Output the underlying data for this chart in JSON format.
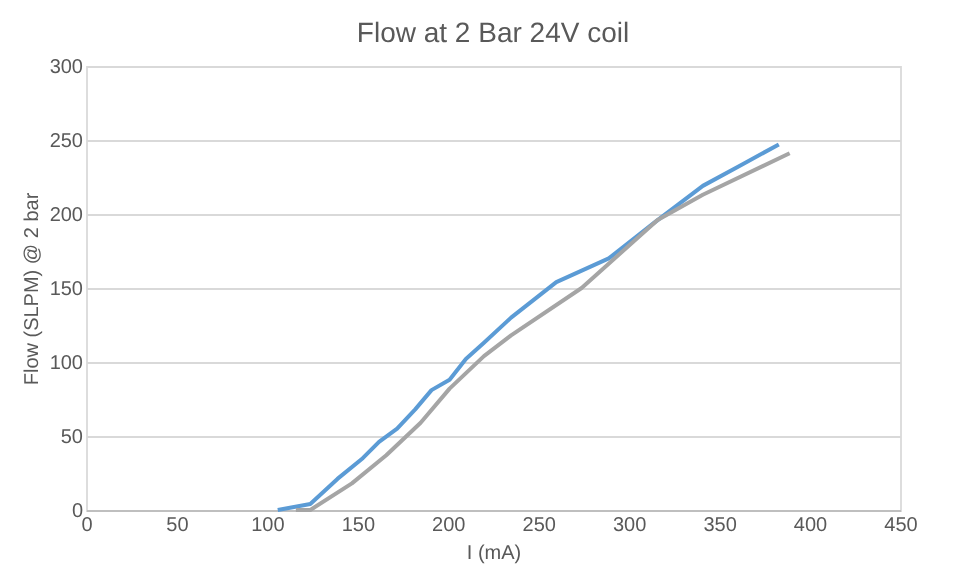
{
  "chart_data": {
    "type": "line",
    "title": "Flow at 2 Bar 24V coil",
    "xlabel": "I (mA)",
    "ylabel": "Flow (SLPM) @ 2 bar",
    "xlim": [
      0,
      450
    ],
    "xticks": [
      0,
      50,
      100,
      150,
      200,
      250,
      300,
      350,
      400,
      450
    ],
    "ylim": [
      0,
      300
    ],
    "yticks": [
      0,
      50,
      100,
      150,
      200,
      250,
      300
    ],
    "grid": "y",
    "line_style": "solid",
    "marker": "none",
    "series": [
      {
        "color": "#5b9bd5",
        "x": [
          106,
          124,
          139,
          153,
          162,
          172,
          182,
          191,
          201,
          210,
          220,
          235,
          260,
          289,
          314,
          341,
          362,
          383
        ],
        "values": [
          0,
          4,
          21,
          35,
          46,
          55,
          68,
          81,
          88,
          102,
          113,
          130,
          154,
          170,
          194,
          219,
          233,
          247
        ]
      },
      {
        "color": "#a5a5a5",
        "x": [
          116,
          124,
          147,
          166,
          185,
          201,
          220,
          235,
          274,
          316,
          341,
          389
        ],
        "values": [
          0,
          0,
          18,
          37,
          59,
          82,
          104,
          118,
          150,
          196,
          213,
          241
        ]
      }
    ]
  }
}
